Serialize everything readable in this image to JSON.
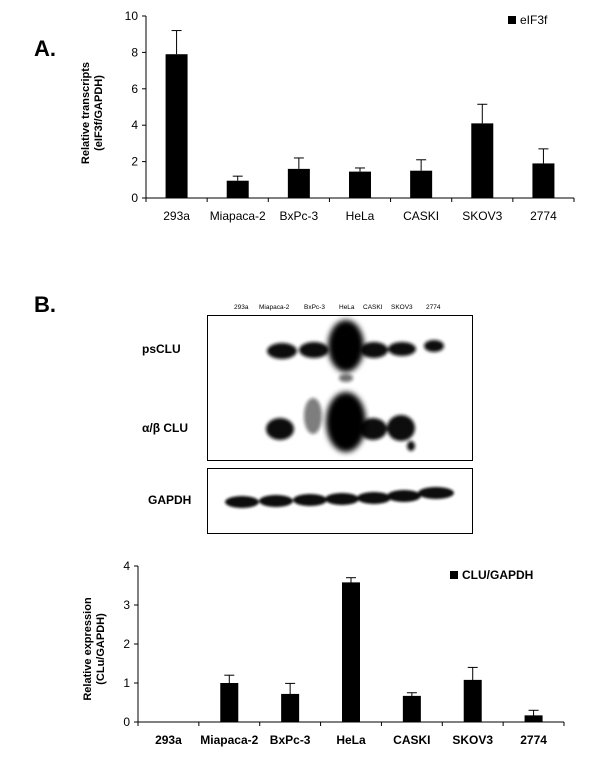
{
  "panel_a_letter": "A.",
  "panel_b_letter": "B.",
  "chart_data": [
    {
      "type": "bar",
      "categories": [
        "293a",
        "Miapaca-2",
        "BxPc-3",
        "HeLa",
        "CASKI",
        "SKOV3",
        "2774"
      ],
      "series": [
        {
          "name": "eIF3f",
          "values": [
            7.9,
            0.95,
            1.6,
            1.45,
            1.5,
            4.1,
            1.9
          ],
          "error": [
            1.3,
            0.25,
            0.6,
            0.2,
            0.6,
            1.05,
            0.8
          ]
        }
      ],
      "ylabel_line1": "Relative transcripts",
      "ylabel_line2": "(eIF3f/GAPDH)",
      "ylim": [
        0,
        10
      ],
      "yticks": [
        "0",
        "2",
        "4",
        "6",
        "8",
        "10"
      ],
      "legend": "top-right",
      "grid": false,
      "color": "#000000"
    },
    {
      "type": "bar",
      "categories": [
        "293a",
        "Miapaca-2",
        "BxPc-3",
        "HeLa",
        "CASKI",
        "SKOV3",
        "2774"
      ],
      "series": [
        {
          "name": "CLU/GAPDH",
          "values": [
            0,
            1.0,
            0.72,
            3.58,
            0.67,
            1.08,
            0.17
          ],
          "error": [
            0,
            0.2,
            0.27,
            0.12,
            0.08,
            0.32,
            0.13
          ]
        }
      ],
      "ylabel_line1": "Relative expression",
      "ylabel_line2": "(CLu/GAPDH)",
      "ylim": [
        0,
        4
      ],
      "yticks": [
        "0",
        "1",
        "2",
        "3",
        "4"
      ],
      "legend": "top-right",
      "grid": false,
      "color": "#000000"
    }
  ],
  "blot": {
    "lanes": [
      "293a",
      "Miapaca-2",
      "BxPc-3",
      "HeLa",
      "CASKI",
      "SKOV3",
      "2774"
    ],
    "row_labels": {
      "psclu": "psCLU",
      "alpha_beta_clu": "α/β CLU",
      "gapdh": "GAPDH"
    }
  }
}
